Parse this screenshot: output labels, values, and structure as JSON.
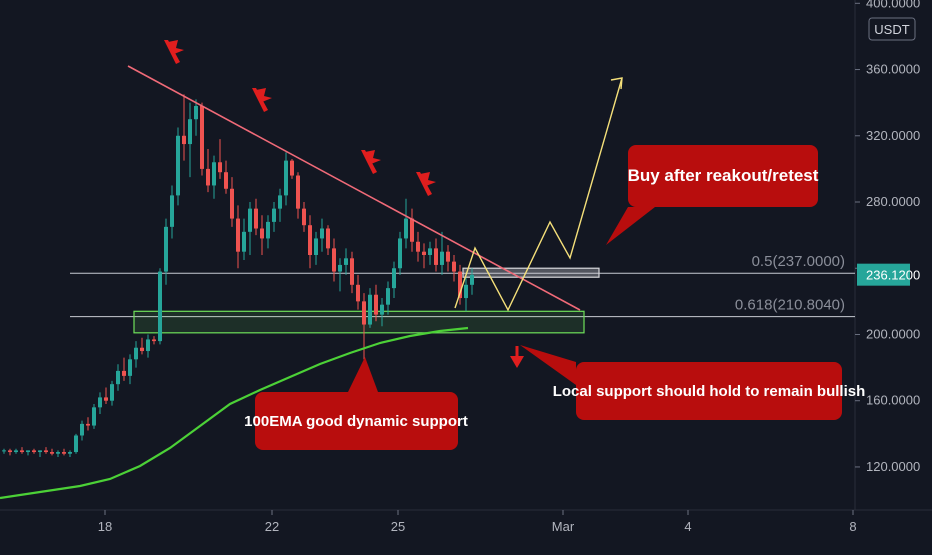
{
  "chart_data": {
    "type": "candlestick",
    "currency_label": "USDT",
    "y_ticks": [
      120,
      160,
      200,
      240,
      280,
      320,
      360,
      400
    ],
    "y_tick_labels": [
      "120.0000",
      "160.0000",
      "200.0000",
      "",
      "280.0000",
      "320.0000",
      "360.0000",
      "400.0000"
    ],
    "ylim": [
      94,
      402
    ],
    "x_ticks": [
      "18",
      "22",
      "25",
      "Mar",
      "4",
      "8"
    ],
    "current_price": "236.1200",
    "fib_levels": [
      {
        "label": "0.5(237.0000)",
        "value": 237.0
      },
      {
        "label": "0.618(210.8040)",
        "value": 210.804
      }
    ],
    "trendline": {
      "start": {
        "bar": 0,
        "price": 361
      },
      "end": {
        "bar": 72,
        "price": 212
      }
    },
    "support_zone": [
      201,
      214
    ],
    "ema_label": "100EMA",
    "candles": [
      [
        130,
        131,
        128,
        130
      ],
      [
        130,
        131,
        127,
        129
      ],
      [
        129,
        131,
        128,
        130
      ],
      [
        130,
        132,
        128,
        129
      ],
      [
        129,
        130,
        127,
        130
      ],
      [
        130,
        131,
        128,
        129
      ],
      [
        129,
        130,
        126,
        130
      ],
      [
        130,
        132,
        128,
        129
      ],
      [
        129,
        131,
        127,
        128
      ],
      [
        128,
        130,
        126,
        129
      ],
      [
        129,
        131,
        127,
        128
      ],
      [
        128,
        130,
        126,
        129
      ],
      [
        129,
        140,
        128,
        139
      ],
      [
        139,
        148,
        136,
        146
      ],
      [
        146,
        150,
        142,
        145
      ],
      [
        145,
        158,
        143,
        156
      ],
      [
        156,
        165,
        152,
        162
      ],
      [
        162,
        168,
        158,
        160
      ],
      [
        160,
        172,
        157,
        170
      ],
      [
        170,
        182,
        166,
        178
      ],
      [
        178,
        186,
        172,
        175
      ],
      [
        175,
        188,
        170,
        185
      ],
      [
        185,
        196,
        180,
        192
      ],
      [
        192,
        198,
        188,
        190
      ],
      [
        190,
        200,
        186,
        197
      ],
      [
        197,
        199,
        194,
        196
      ],
      [
        196,
        240,
        194,
        238
      ],
      [
        238,
        270,
        230,
        265
      ],
      [
        265,
        290,
        258,
        284
      ],
      [
        284,
        325,
        278,
        320
      ],
      [
        320,
        345,
        305,
        315
      ],
      [
        315,
        340,
        295,
        330
      ],
      [
        330,
        342,
        320,
        338
      ],
      [
        338,
        340,
        296,
        300
      ],
      [
        300,
        312,
        286,
        290
      ],
      [
        290,
        308,
        282,
        304
      ],
      [
        304,
        318,
        294,
        298
      ],
      [
        298,
        305,
        285,
        288
      ],
      [
        288,
        295,
        265,
        270
      ],
      [
        270,
        278,
        240,
        250
      ],
      [
        250,
        270,
        245,
        262
      ],
      [
        262,
        280,
        248,
        276
      ],
      [
        276,
        282,
        260,
        264
      ],
      [
        264,
        272,
        248,
        258
      ],
      [
        258,
        272,
        252,
        268
      ],
      [
        268,
        280,
        262,
        276
      ],
      [
        276,
        288,
        268,
        284
      ],
      [
        284,
        310,
        278,
        305
      ],
      [
        305,
        306,
        294,
        296
      ],
      [
        296,
        298,
        270,
        276
      ],
      [
        276,
        280,
        262,
        266
      ],
      [
        266,
        272,
        240,
        248
      ],
      [
        248,
        262,
        242,
        258
      ],
      [
        258,
        270,
        250,
        264
      ],
      [
        264,
        266,
        248,
        252
      ],
      [
        252,
        258,
        232,
        238
      ],
      [
        238,
        246,
        226,
        242
      ],
      [
        242,
        252,
        236,
        246
      ],
      [
        246,
        250,
        225,
        230
      ],
      [
        230,
        236,
        215,
        220
      ],
      [
        220,
        225,
        185,
        206
      ],
      [
        206,
        228,
        204,
        224
      ],
      [
        224,
        230,
        208,
        212
      ],
      [
        212,
        222,
        205,
        218
      ],
      [
        218,
        232,
        212,
        228
      ],
      [
        228,
        244,
        222,
        240
      ],
      [
        240,
        262,
        236,
        258
      ],
      [
        258,
        282,
        252,
        270
      ],
      [
        270,
        276,
        250,
        256
      ],
      [
        256,
        262,
        244,
        250
      ],
      [
        250,
        255,
        240,
        248
      ],
      [
        248,
        256,
        242,
        252
      ],
      [
        252,
        258,
        238,
        242
      ],
      [
        242,
        262,
        236,
        250
      ],
      [
        250,
        254,
        238,
        244
      ],
      [
        244,
        248,
        232,
        238
      ],
      [
        238,
        242,
        218,
        222
      ],
      [
        222,
        234,
        214,
        230
      ],
      [
        230,
        240,
        224,
        236
      ]
    ]
  },
  "callouts": {
    "buy": "Buy after reakout/retest",
    "support": "Local support should hold to remain bullish",
    "ema": "100EMA good dynamic support"
  },
  "colors": {
    "background": "#131722",
    "candle_up": "#26a69a",
    "candle_down": "#ef5350",
    "trendline": "#f06a78",
    "ema": "#4cd137",
    "projection": "#f5e07a",
    "callout_bg": "#b80d0d",
    "support_zone_border": "#6ee05a"
  },
  "icons": [
    "red-flag-icon",
    "red-flag-icon",
    "red-flag-icon",
    "red-flag-icon",
    "red-down-arrow-icon"
  ]
}
